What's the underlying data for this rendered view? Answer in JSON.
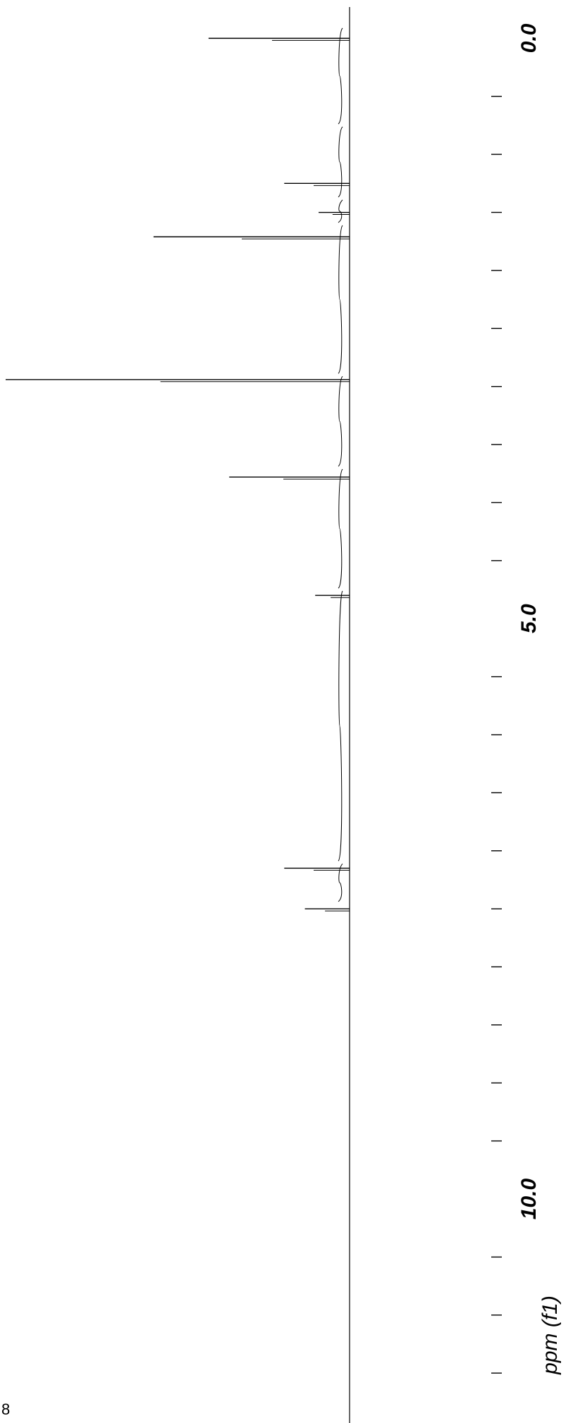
{
  "chart_data": {
    "type": "line",
    "title": "",
    "xlabel": "ppm (f1)",
    "ylabel": "",
    "orientation": "rotated-90-ppm-increasing-downward",
    "xlim": [
      -0.33,
      11.93
    ],
    "major_tick_labels": [
      "0.0",
      "5.0",
      "10.0"
    ],
    "minor_tick_step": 0.5,
    "grid": false,
    "series": [
      {
        "peaks": [
          {
            "ppm": 0.0,
            "intensity": 0.41,
            "label": ""
          },
          {
            "ppm": 1.25,
            "intensity": 0.19,
            "label": ""
          },
          {
            "ppm": 1.5,
            "intensity": 0.09,
            "label": ""
          },
          {
            "ppm": 1.71,
            "intensity": 0.57,
            "label": ""
          },
          {
            "ppm": 2.94,
            "intensity": 1.0,
            "label": ""
          },
          {
            "ppm": 3.78,
            "intensity": 0.35,
            "label": ""
          },
          {
            "ppm": 4.8,
            "intensity": 0.1,
            "label": ""
          },
          {
            "ppm": 7.15,
            "intensity": 0.19,
            "label": ""
          },
          {
            "ppm": 7.5,
            "intensity": 0.13,
            "label": ""
          }
        ]
      }
    ],
    "integrals": [
      {
        "from": -0.1,
        "to": 0.75
      },
      {
        "from": 0.75,
        "to": 1.38
      },
      {
        "from": 1.38,
        "to": 1.6
      },
      {
        "from": 1.6,
        "to": 2.9
      },
      {
        "from": 2.9,
        "to": 3.7
      },
      {
        "from": 3.7,
        "to": 4.75
      },
      {
        "from": 4.75,
        "to": 7.1
      },
      {
        "from": 7.1,
        "to": 7.45
      }
    ]
  },
  "corner_mark": "8",
  "colors": {
    "line": "#000000",
    "background": "#ffffff"
  }
}
